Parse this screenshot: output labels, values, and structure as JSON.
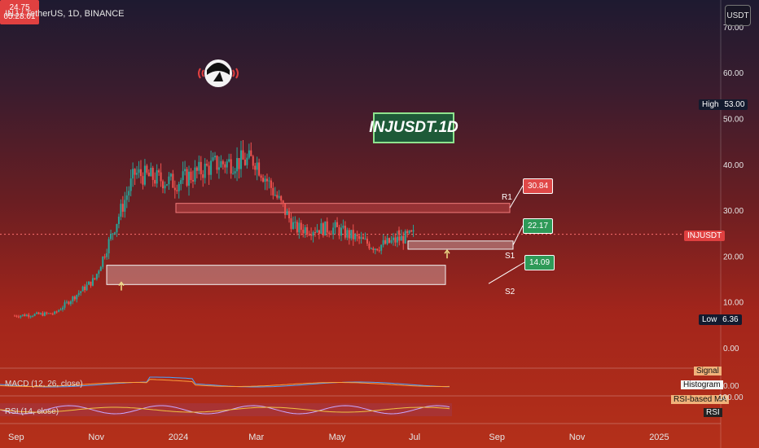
{
  "header": {
    "title": "INJ / TetherUS, 1D, BINANCE",
    "currency_button": "USDT"
  },
  "overlay": {
    "chart_label": "INJUSDT.1D",
    "level_tags": [
      {
        "name": "R1",
        "value": "30.84",
        "color": "#e04848"
      },
      {
        "name": "S1",
        "value": "22.17",
        "color": "#2e9a58"
      },
      {
        "name": "S2",
        "value": "14.09",
        "color": "#2e9a58"
      }
    ],
    "price_tag": {
      "symbol": "INJUSDT",
      "price": "24.75",
      "countdown": "05:28:01"
    },
    "high_tag": {
      "label": "High",
      "value": "53.00"
    },
    "low_tag": {
      "label": "Low",
      "value": "6.36"
    }
  },
  "indicators": {
    "macd": {
      "label": "MACD (12, 26, close)",
      "signal_label": "Signal",
      "histogram_label": "Histogram",
      "zero_label": "0.00"
    },
    "rsi": {
      "label": "RSI (14, close)",
      "ma_label": "RSI-based MA",
      "rsi_tag": "RSI",
      "upper_label": "100.00"
    }
  },
  "colors": {
    "up": "#26a69a",
    "down": "#ef5350",
    "resistance_zone": "#e85a5a",
    "support_zone": "#e8e8e8"
  },
  "chart_data": {
    "type": "candlestick",
    "title": "INJ / TetherUS, 1D, BINANCE",
    "x_ticks": [
      "Sep",
      "Nov",
      "2024",
      "Mar",
      "May",
      "Jul",
      "Sep",
      "Nov",
      "2025"
    ],
    "y_ticks": [
      "0.00",
      "10.00",
      "20.00",
      "30.00",
      "40.00",
      "50.00",
      "60.00",
      "70.00"
    ],
    "ylim": [
      0,
      70
    ],
    "grid": false,
    "zones": [
      {
        "name": "R1",
        "low": 29.5,
        "high": 31.5
      },
      {
        "name": "S1",
        "low": 21.5,
        "high": 23.3
      },
      {
        "name": "S2",
        "low": 13.8,
        "high": 18.0
      }
    ],
    "arrows": [
      {
        "x": "Nov",
        "y": 12.5
      },
      {
        "x": "Jul",
        "y": 19.5
      }
    ],
    "monthly_close": [
      {
        "month": "Sep",
        "value": 7.0
      },
      {
        "month": "Oct",
        "value": 7.5
      },
      {
        "month": "Nov",
        "value": 15.0
      },
      {
        "month": "Dec",
        "value": 38.0
      },
      {
        "month": "Jan",
        "value": 36.0
      },
      {
        "month": "Feb",
        "value": 40.0
      },
      {
        "month": "Mar",
        "value": 41.0
      },
      {
        "month": "Apr",
        "value": 26.0
      },
      {
        "month": "May",
        "value": 26.0
      },
      {
        "month": "Jun",
        "value": 22.0
      },
      {
        "month": "Jul",
        "value": 24.75
      }
    ],
    "high": 53.0,
    "low": 6.36,
    "last": 24.75
  }
}
